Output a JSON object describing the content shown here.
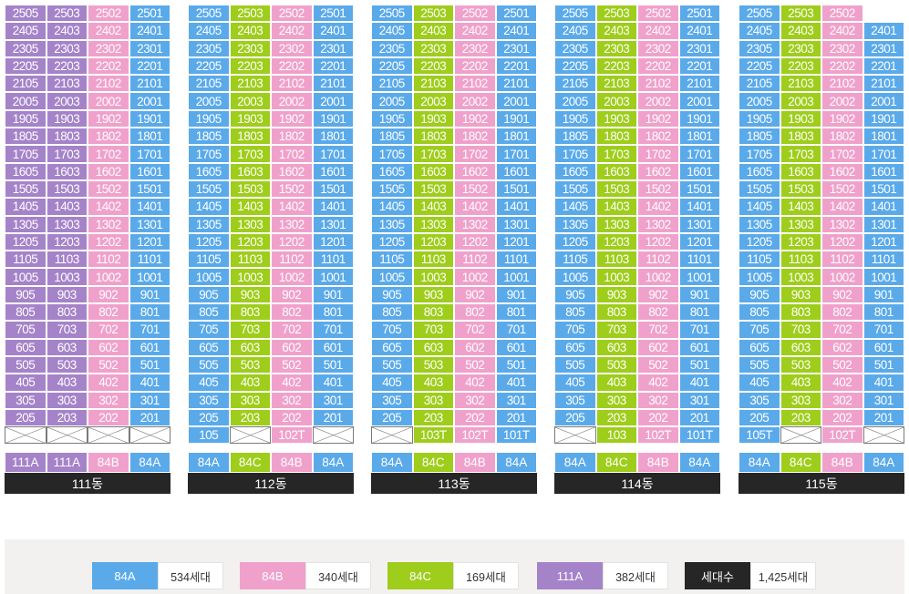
{
  "colors": {
    "A": "#5aaaea",
    "B": "#f0a1cb",
    "C": "#9ecd1b",
    "D": "#a583c9",
    "total": "#262626"
  },
  "buildings": [
    {
      "name": "111동",
      "colors": [
        "D",
        "D",
        "B",
        "A"
      ],
      "types": [
        {
          "label": "111A",
          "color": "D"
        },
        {
          "label": "111A",
          "color": "D"
        },
        {
          "label": "84B",
          "color": "B"
        },
        {
          "label": "84A",
          "color": "A"
        }
      ],
      "rows": [
        [
          "2505",
          "2503",
          "2502",
          "2501"
        ],
        [
          "2405",
          "2403",
          "2402",
          "2401"
        ],
        [
          "2305",
          "2303",
          "2302",
          "2301"
        ],
        [
          "2205",
          "2203",
          "2202",
          "2201"
        ],
        [
          "2105",
          "2103",
          "2102",
          "2101"
        ],
        [
          "2005",
          "2003",
          "2002",
          "2001"
        ],
        [
          "1905",
          "1903",
          "1902",
          "1901"
        ],
        [
          "1805",
          "1803",
          "1802",
          "1801"
        ],
        [
          "1705",
          "1703",
          "1702",
          "1701"
        ],
        [
          "1605",
          "1603",
          "1602",
          "1601"
        ],
        [
          "1505",
          "1503",
          "1502",
          "1501"
        ],
        [
          "1405",
          "1403",
          "1402",
          "1401"
        ],
        [
          "1305",
          "1303",
          "1302",
          "1301"
        ],
        [
          "1205",
          "1203",
          "1202",
          "1201"
        ],
        [
          "1105",
          "1103",
          "1102",
          "1101"
        ],
        [
          "1005",
          "1003",
          "1002",
          "1001"
        ],
        [
          "905",
          "903",
          "902",
          "901"
        ],
        [
          "805",
          "803",
          "802",
          "801"
        ],
        [
          "705",
          "703",
          "702",
          "701"
        ],
        [
          "605",
          "603",
          "602",
          "601"
        ],
        [
          "505",
          "503",
          "502",
          "501"
        ],
        [
          "405",
          "403",
          "402",
          "401"
        ],
        [
          "305",
          "303",
          "302",
          "301"
        ],
        [
          "205",
          "203",
          "202",
          "201"
        ],
        [
          "X",
          "X",
          "X",
          "X"
        ]
      ]
    },
    {
      "name": "112동",
      "colors": [
        "A",
        "C",
        "B",
        "A"
      ],
      "types": [
        {
          "label": "84A",
          "color": "A"
        },
        {
          "label": "84C",
          "color": "C"
        },
        {
          "label": "84B",
          "color": "B"
        },
        {
          "label": "84A",
          "color": "A"
        }
      ],
      "rows": [
        [
          "2505",
          "2503",
          "2502",
          "2501"
        ],
        [
          "2405",
          "2403",
          "2402",
          "2401"
        ],
        [
          "2305",
          "2303",
          "2302",
          "2301"
        ],
        [
          "2205",
          "2203",
          "2202",
          "2201"
        ],
        [
          "2105",
          "2103",
          "2102",
          "2101"
        ],
        [
          "2005",
          "2003",
          "2002",
          "2001"
        ],
        [
          "1905",
          "1903",
          "1902",
          "1901"
        ],
        [
          "1805",
          "1803",
          "1802",
          "1801"
        ],
        [
          "1705",
          "1703",
          "1702",
          "1701"
        ],
        [
          "1605",
          "1603",
          "1602",
          "1601"
        ],
        [
          "1505",
          "1503",
          "1502",
          "1501"
        ],
        [
          "1405",
          "1403",
          "1402",
          "1401"
        ],
        [
          "1305",
          "1303",
          "1302",
          "1301"
        ],
        [
          "1205",
          "1203",
          "1202",
          "1201"
        ],
        [
          "1105",
          "1103",
          "1102",
          "1101"
        ],
        [
          "1005",
          "1003",
          "1002",
          "1001"
        ],
        [
          "905",
          "903",
          "902",
          "901"
        ],
        [
          "805",
          "803",
          "802",
          "801"
        ],
        [
          "705",
          "703",
          "702",
          "701"
        ],
        [
          "605",
          "603",
          "602",
          "601"
        ],
        [
          "505",
          "503",
          "502",
          "501"
        ],
        [
          "405",
          "403",
          "402",
          "401"
        ],
        [
          "305",
          "303",
          "302",
          "301"
        ],
        [
          "205",
          "203",
          "202",
          "201"
        ],
        [
          "105",
          "X",
          "102T",
          "X"
        ]
      ]
    },
    {
      "name": "113동",
      "colors": [
        "A",
        "C",
        "B",
        "A"
      ],
      "types": [
        {
          "label": "84A",
          "color": "A"
        },
        {
          "label": "84C",
          "color": "C"
        },
        {
          "label": "84B",
          "color": "B"
        },
        {
          "label": "84A",
          "color": "A"
        }
      ],
      "rows": [
        [
          "2505",
          "2503",
          "2502",
          "2501"
        ],
        [
          "2405",
          "2403",
          "2402",
          "2401"
        ],
        [
          "2305",
          "2303",
          "2302",
          "2301"
        ],
        [
          "2205",
          "2203",
          "2202",
          "2201"
        ],
        [
          "2105",
          "2103",
          "2102",
          "2101"
        ],
        [
          "2005",
          "2003",
          "2002",
          "2001"
        ],
        [
          "1905",
          "1903",
          "1902",
          "1901"
        ],
        [
          "1805",
          "1803",
          "1802",
          "1801"
        ],
        [
          "1705",
          "1703",
          "1702",
          "1701"
        ],
        [
          "1605",
          "1603",
          "1602",
          "1601"
        ],
        [
          "1505",
          "1503",
          "1502",
          "1501"
        ],
        [
          "1405",
          "1403",
          "1402",
          "1401"
        ],
        [
          "1305",
          "1303",
          "1302",
          "1301"
        ],
        [
          "1205",
          "1203",
          "1202",
          "1201"
        ],
        [
          "1105",
          "1103",
          "1102",
          "1101"
        ],
        [
          "1005",
          "1003",
          "1002",
          "1001"
        ],
        [
          "905",
          "903",
          "902",
          "901"
        ],
        [
          "805",
          "803",
          "802",
          "801"
        ],
        [
          "705",
          "703",
          "702",
          "701"
        ],
        [
          "605",
          "603",
          "602",
          "601"
        ],
        [
          "505",
          "503",
          "502",
          "501"
        ],
        [
          "405",
          "403",
          "402",
          "401"
        ],
        [
          "305",
          "303",
          "302",
          "301"
        ],
        [
          "205",
          "203",
          "202",
          "201"
        ],
        [
          "X",
          "103T",
          "102T",
          "101T"
        ]
      ]
    },
    {
      "name": "114동",
      "colors": [
        "A",
        "C",
        "B",
        "A"
      ],
      "types": [
        {
          "label": "84A",
          "color": "A"
        },
        {
          "label": "84C",
          "color": "C"
        },
        {
          "label": "84B",
          "color": "B"
        },
        {
          "label": "84A",
          "color": "A"
        }
      ],
      "rows": [
        [
          "2505",
          "2503",
          "2502",
          "2501"
        ],
        [
          "2405",
          "2403",
          "2402",
          "2401"
        ],
        [
          "2305",
          "2303",
          "2302",
          "2301"
        ],
        [
          "2205",
          "2203",
          "2202",
          "2201"
        ],
        [
          "2105",
          "2103",
          "2102",
          "2101"
        ],
        [
          "2005",
          "2003",
          "2002",
          "2001"
        ],
        [
          "1905",
          "1903",
          "1902",
          "1901"
        ],
        [
          "1805",
          "1803",
          "1802",
          "1801"
        ],
        [
          "1705",
          "1703",
          "1702",
          "1701"
        ],
        [
          "1605",
          "1603",
          "1602",
          "1601"
        ],
        [
          "1505",
          "1503",
          "1502",
          "1501"
        ],
        [
          "1405",
          "1403",
          "1402",
          "1401"
        ],
        [
          "1305",
          "1303",
          "1302",
          "1301"
        ],
        [
          "1205",
          "1203",
          "1202",
          "1201"
        ],
        [
          "1105",
          "1103",
          "1102",
          "1101"
        ],
        [
          "1005",
          "1003",
          "1002",
          "1001"
        ],
        [
          "905",
          "903",
          "902",
          "901"
        ],
        [
          "805",
          "803",
          "802",
          "801"
        ],
        [
          "705",
          "703",
          "702",
          "701"
        ],
        [
          "605",
          "603",
          "602",
          "601"
        ],
        [
          "505",
          "503",
          "502",
          "501"
        ],
        [
          "405",
          "403",
          "402",
          "401"
        ],
        [
          "305",
          "303",
          "302",
          "301"
        ],
        [
          "205",
          "203",
          "202",
          "201"
        ],
        [
          "X",
          "103",
          "102T",
          "101T"
        ]
      ]
    },
    {
      "name": "115동",
      "colors": [
        "A",
        "C",
        "B",
        "A"
      ],
      "types": [
        {
          "label": "84A",
          "color": "A"
        },
        {
          "label": "84C",
          "color": "C"
        },
        {
          "label": "84B",
          "color": "B"
        },
        {
          "label": "84A",
          "color": "A"
        }
      ],
      "rows": [
        [
          "2505",
          "2503",
          "2502",
          "-"
        ],
        [
          "2405",
          "2403",
          "2402",
          "2401"
        ],
        [
          "2305",
          "2303",
          "2302",
          "2301"
        ],
        [
          "2205",
          "2203",
          "2202",
          "2201"
        ],
        [
          "2105",
          "2103",
          "2102",
          "2101"
        ],
        [
          "2005",
          "2003",
          "2002",
          "2001"
        ],
        [
          "1905",
          "1903",
          "1902",
          "1901"
        ],
        [
          "1805",
          "1803",
          "1802",
          "1801"
        ],
        [
          "1705",
          "1703",
          "1702",
          "1701"
        ],
        [
          "1605",
          "1603",
          "1602",
          "1601"
        ],
        [
          "1505",
          "1503",
          "1502",
          "1501"
        ],
        [
          "1405",
          "1403",
          "1402",
          "1401"
        ],
        [
          "1305",
          "1303",
          "1302",
          "1301"
        ],
        [
          "1205",
          "1203",
          "1202",
          "1201"
        ],
        [
          "1105",
          "1103",
          "1102",
          "1101"
        ],
        [
          "1005",
          "1003",
          "1002",
          "1001"
        ],
        [
          "905",
          "903",
          "902",
          "901"
        ],
        [
          "805",
          "803",
          "802",
          "801"
        ],
        [
          "705",
          "703",
          "702",
          "701"
        ],
        [
          "605",
          "603",
          "602",
          "601"
        ],
        [
          "505",
          "503",
          "502",
          "501"
        ],
        [
          "405",
          "403",
          "402",
          "401"
        ],
        [
          "305",
          "303",
          "302",
          "301"
        ],
        [
          "205",
          "203",
          "202",
          "201"
        ],
        [
          "105T",
          "X",
          "102T",
          "X"
        ]
      ]
    }
  ],
  "legend": [
    {
      "label": "84A",
      "value": "534세대",
      "color": "#5aaaea"
    },
    {
      "label": "84B",
      "value": "340세대",
      "color": "#f0a1cb"
    },
    {
      "label": "84C",
      "value": "169세대",
      "color": "#9ecd1b"
    },
    {
      "label": "111A",
      "value": "382세대",
      "color": "#a583c9"
    },
    {
      "label": "세대수",
      "value": "1,425세대",
      "color": "#262626"
    }
  ]
}
